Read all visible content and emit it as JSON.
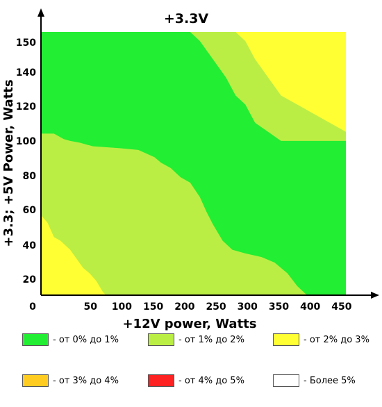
{
  "chart_data": {
    "type": "heatmap",
    "title": "+3.3V",
    "xlabel": "+12V power, Watts",
    "ylabel": "+3.3; +5V Power, Watts",
    "origin_label": "0",
    "xlim": [
      0,
      475
    ],
    "ylim": [
      10,
      160
    ],
    "plot_x_range": [
      0,
      470
    ],
    "plot_y_range": [
      10,
      155
    ],
    "xticks": [
      50,
      100,
      150,
      200,
      250,
      300,
      350,
      400,
      450
    ],
    "yticks": [
      20,
      40,
      60,
      80,
      100,
      120,
      140,
      150
    ],
    "grid": false,
    "colors": {
      "c1": "#22ee33",
      "c2": "#bbee44",
      "c3": "#ffff33",
      "c4": "#ffcc22",
      "c5": "#ff2222",
      "c6": "#ffffff"
    },
    "regions": [
      {
        "level": "c3",
        "description_points": [
          [
            260,
            155
          ],
          [
            470,
            155
          ],
          [
            470,
            120
          ],
          [
            390,
            120
          ],
          [
            350,
            140
          ],
          [
            305,
            155
          ]
        ]
      }
    ],
    "boundaries": {
      "green_to_lightgreen_top": [
        [
          230,
          155
        ],
        [
          245,
          150
        ],
        [
          265,
          140
        ],
        [
          285,
          130
        ],
        [
          300,
          120
        ],
        [
          315,
          115
        ],
        [
          330,
          105
        ],
        [
          350,
          100
        ],
        [
          370,
          95
        ],
        [
          470,
          95
        ]
      ],
      "lightgreen_to_yellow_top": [
        [
          300,
          155
        ],
        [
          315,
          150
        ],
        [
          330,
          140
        ],
        [
          350,
          130
        ],
        [
          370,
          120
        ],
        [
          395,
          115
        ],
        [
          420,
          110
        ],
        [
          445,
          105
        ],
        [
          470,
          100
        ]
      ],
      "green_to_lightgreen_bottom_upper": [
        [
          0,
          99
        ],
        [
          20,
          99
        ],
        [
          25,
          98
        ],
        [
          35,
          96
        ],
        [
          45,
          95
        ],
        [
          60,
          94
        ],
        [
          80,
          92
        ],
        [
          120,
          91
        ],
        [
          150,
          90
        ],
        [
          175,
          86
        ],
        [
          185,
          83
        ],
        [
          200,
          80
        ],
        [
          215,
          75
        ],
        [
          230,
          72
        ],
        [
          245,
          64
        ],
        [
          255,
          56
        ],
        [
          265,
          49
        ],
        [
          280,
          40
        ],
        [
          295,
          35
        ],
        [
          315,
          33
        ],
        [
          340,
          31
        ],
        [
          360,
          28
        ],
        [
          380,
          22
        ],
        [
          395,
          15
        ],
        [
          410,
          10
        ]
      ],
      "lightgreen_to_yellow_bottom": [
        [
          0,
          54
        ],
        [
          10,
          50
        ],
        [
          20,
          42
        ],
        [
          30,
          40
        ],
        [
          45,
          35
        ],
        [
          55,
          30
        ],
        [
          65,
          25
        ],
        [
          75,
          22
        ],
        [
          85,
          18
        ],
        [
          95,
          12
        ],
        [
          100,
          10
        ]
      ]
    },
    "legend": [
      {
        "color": "c1",
        "label": "- от 0% до 1%"
      },
      {
        "color": "c2",
        "label": "- от 1% до 2%"
      },
      {
        "color": "c3",
        "label": "- от 2% до 3%"
      },
      {
        "color": "c4",
        "label": "- от 3% до 4%"
      },
      {
        "color": "c5",
        "label": "- от 4% до 5%"
      },
      {
        "color": "c6",
        "label": "- Более 5%"
      }
    ]
  }
}
